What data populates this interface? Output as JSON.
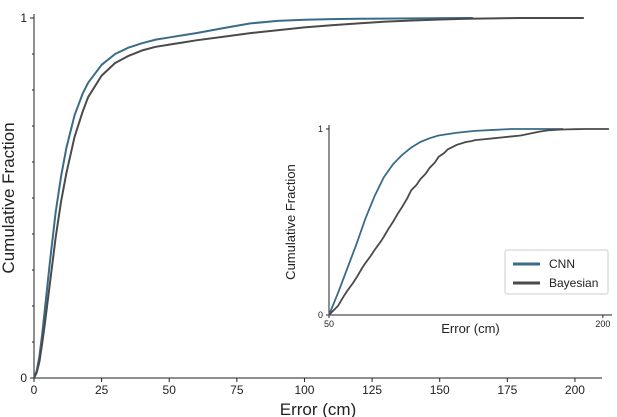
{
  "chart_data": [
    {
      "type": "line",
      "role": "main",
      "xlabel": "Error (cm)",
      "ylabel": "Cumulative Fraction",
      "xlim": [
        0,
        210
      ],
      "ylim": [
        0,
        1
      ],
      "xticks": [
        0,
        25,
        50,
        75,
        100,
        125,
        150,
        175,
        200
      ],
      "yticks": [
        0,
        1
      ],
      "legend_position": "inset lower-right",
      "series": [
        {
          "name": "CNN",
          "color": "#3a6b88",
          "x": [
            0,
            1,
            2,
            3,
            4,
            5,
            6,
            8,
            10,
            12,
            15,
            18,
            20,
            25,
            30,
            35,
            40,
            45,
            50,
            55,
            60,
            70,
            80,
            90,
            100,
            110,
            120,
            140,
            160,
            162
          ],
          "y": [
            0,
            0.02,
            0.06,
            0.12,
            0.19,
            0.26,
            0.33,
            0.46,
            0.56,
            0.64,
            0.73,
            0.79,
            0.82,
            0.87,
            0.9,
            0.918,
            0.93,
            0.94,
            0.946,
            0.952,
            0.958,
            0.972,
            0.985,
            0.992,
            0.995,
            0.997,
            0.998,
            0.999,
            1.0,
            1.0
          ]
        },
        {
          "name": "Bayesian",
          "color": "#4a4a4a",
          "x": [
            0,
            1,
            2,
            3,
            4,
            5,
            6,
            8,
            10,
            12,
            15,
            18,
            20,
            25,
            30,
            35,
            40,
            45,
            50,
            55,
            60,
            70,
            80,
            90,
            100,
            110,
            120,
            130,
            140,
            150,
            160,
            170,
            180,
            190,
            200,
            203
          ],
          "y": [
            0,
            0.015,
            0.045,
            0.095,
            0.15,
            0.21,
            0.27,
            0.39,
            0.49,
            0.57,
            0.67,
            0.74,
            0.78,
            0.84,
            0.875,
            0.895,
            0.91,
            0.92,
            0.926,
            0.932,
            0.938,
            0.948,
            0.958,
            0.966,
            0.974,
            0.98,
            0.985,
            0.99,
            0.993,
            0.996,
            0.998,
            0.999,
            1.0,
            1.0,
            1.0,
            1.0
          ]
        }
      ]
    },
    {
      "type": "line",
      "role": "inset",
      "xlabel": "Error (cm)",
      "ylabel": "Cumulative Fraction",
      "xlim": [
        50,
        205
      ],
      "ylim": [
        0,
        1
      ],
      "xticks": [
        50,
        200
      ],
      "yticks": [
        0,
        1
      ],
      "series": [
        {
          "name": "CNN",
          "color": "#3a6b88",
          "x": [
            50,
            55,
            60,
            65,
            70,
            75,
            80,
            85,
            90,
            95,
            100,
            105,
            110,
            120,
            130,
            140,
            150,
            160,
            170,
            178
          ],
          "y": [
            0,
            0.12,
            0.25,
            0.38,
            0.52,
            0.64,
            0.74,
            0.81,
            0.86,
            0.9,
            0.93,
            0.95,
            0.965,
            0.98,
            0.99,
            0.995,
            1.0,
            1.0,
            1.0,
            1.0
          ]
        },
        {
          "name": "Bayesian",
          "color": "#4a4a4a",
          "x": [
            50,
            52,
            55,
            58,
            60,
            63,
            65,
            68,
            70,
            73,
            75,
            78,
            80,
            83,
            85,
            88,
            90,
            93,
            95,
            98,
            100,
            103,
            105,
            108,
            110,
            113,
            115,
            118,
            120,
            125,
            128,
            130,
            135,
            140,
            145,
            150,
            155,
            160,
            165,
            168,
            170,
            175,
            180,
            185,
            190,
            200,
            203
          ],
          "y": [
            0,
            0.02,
            0.05,
            0.1,
            0.13,
            0.17,
            0.2,
            0.25,
            0.28,
            0.32,
            0.35,
            0.39,
            0.42,
            0.47,
            0.5,
            0.55,
            0.58,
            0.63,
            0.67,
            0.7,
            0.73,
            0.76,
            0.79,
            0.82,
            0.85,
            0.87,
            0.89,
            0.905,
            0.915,
            0.93,
            0.935,
            0.94,
            0.945,
            0.95,
            0.955,
            0.96,
            0.965,
            0.975,
            0.985,
            0.99,
            0.993,
            0.996,
            0.998,
            0.999,
            1.0,
            1.0,
            1.0
          ]
        }
      ]
    }
  ],
  "legend": {
    "items": [
      {
        "label": "CNN",
        "color": "#3a6b88"
      },
      {
        "label": "Bayesian",
        "color": "#4a4a4a"
      }
    ]
  }
}
